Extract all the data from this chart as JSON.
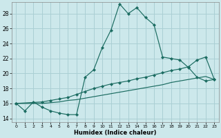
{
  "xlabel": "Humidex (Indice chaleur)",
  "bg_color": "#cce8eb",
  "grid_color": "#aacfd4",
  "line_color": "#1a6b60",
  "xlim": [
    -0.5,
    23.5
  ],
  "ylim": [
    13.5,
    29.5
  ],
  "xticks": [
    0,
    1,
    2,
    3,
    4,
    5,
    6,
    7,
    8,
    9,
    10,
    11,
    12,
    13,
    14,
    15,
    16,
    17,
    18,
    19,
    20,
    21,
    22,
    23
  ],
  "yticks": [
    14,
    16,
    18,
    20,
    22,
    24,
    26,
    28
  ],
  "line1_x": [
    0,
    1,
    2,
    3,
    4,
    5,
    6,
    7,
    8,
    9,
    10,
    11,
    12,
    13,
    14,
    15,
    16,
    17,
    18,
    19,
    20,
    21,
    22,
    23
  ],
  "line1_y": [
    16.0,
    15.0,
    16.2,
    15.5,
    15.0,
    14.7,
    14.5,
    14.5,
    19.5,
    20.5,
    23.5,
    25.8,
    29.3,
    28.0,
    28.8,
    27.5,
    26.5,
    22.2,
    22.0,
    21.8,
    20.8,
    19.5,
    19.0,
    19.2
  ],
  "line2_x": [
    0,
    3,
    4,
    5,
    6,
    7,
    8,
    9,
    10,
    11,
    12,
    13,
    14,
    15,
    16,
    17,
    18,
    19,
    20,
    21,
    22,
    23
  ],
  "line2_y": [
    16.0,
    16.2,
    16.4,
    16.6,
    16.8,
    17.2,
    17.6,
    18.0,
    18.3,
    18.6,
    18.8,
    19.0,
    19.3,
    19.5,
    19.8,
    20.1,
    20.4,
    20.6,
    20.9,
    21.8,
    22.2,
    19.2
  ],
  "line3_x": [
    0,
    3,
    4,
    5,
    6,
    7,
    8,
    9,
    10,
    11,
    12,
    13,
    14,
    15,
    16,
    17,
    18,
    19,
    20,
    21,
    22,
    23
  ],
  "line3_y": [
    16.0,
    16.0,
    16.1,
    16.2,
    16.4,
    16.5,
    16.7,
    16.9,
    17.1,
    17.3,
    17.5,
    17.7,
    17.9,
    18.1,
    18.3,
    18.5,
    18.8,
    19.0,
    19.2,
    19.4,
    19.6,
    19.2
  ]
}
